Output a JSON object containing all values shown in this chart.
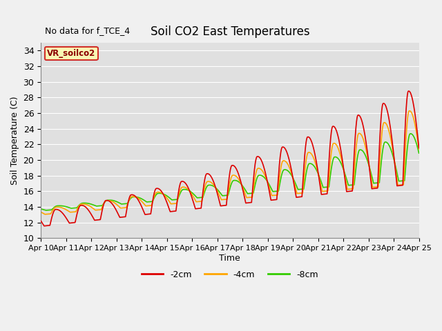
{
  "title": "Soil CO2 East Temperatures",
  "note": "No data for f_TCE_4",
  "ylabel": "Soil Temperature (C)",
  "xlabel": "Time",
  "legend_title": "VR_soilco2",
  "ylim": [
    10,
    35
  ],
  "color_2cm": "#dd0000",
  "color_4cm": "#ffa500",
  "color_8cm": "#33cc00",
  "lw": 1.2,
  "xtick_labels": [
    "Apr 10",
    "Apr 11",
    "Apr 12",
    "Apr 13",
    "Apr 14",
    "Apr 15",
    "Apr 16",
    "Apr 17",
    "Apr 18",
    "Apr 19",
    "Apr 20",
    "Apr 21",
    "Apr 22",
    "Apr 23",
    "Apr 24",
    "Apr 25"
  ],
  "plot_bg": "#e0e0e0",
  "grid_color": "#ffffff",
  "fig_bg": "#f0f0f0",
  "figsize": [
    6.4,
    4.8
  ],
  "dpi": 100
}
